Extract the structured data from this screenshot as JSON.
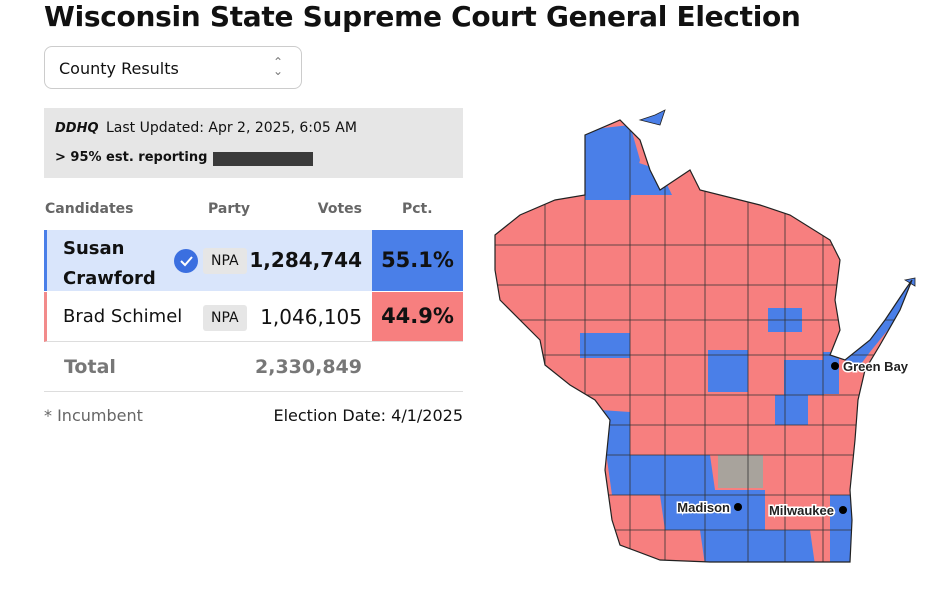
{
  "header": {
    "title": "Wisconsin State Supreme Court General Election"
  },
  "dropdown": {
    "label": "County Results"
  },
  "status": {
    "source": "DDHQ",
    "last_updated": "Last Updated: Apr 2, 2025, 6:05 AM",
    "reporting": "> 95% est. reporting"
  },
  "table": {
    "columns": [
      "Candidates",
      "Party",
      "Votes",
      "Pct."
    ],
    "rows": [
      [
        "Susan Crawford",
        "NPA",
        "1,284,744",
        "55.1%"
      ],
      [
        "Brad Schimel",
        "NPA",
        "1,046,105",
        "44.9%"
      ]
    ],
    "total": [
      "Total",
      "2,330,849"
    ]
  },
  "footer": {
    "note": "* Incumbent",
    "election_date": "Election Date: 4/1/2025"
  },
  "map": {
    "cities": [
      "Green Bay",
      "Madison",
      "Milwaukee"
    ]
  }
}
